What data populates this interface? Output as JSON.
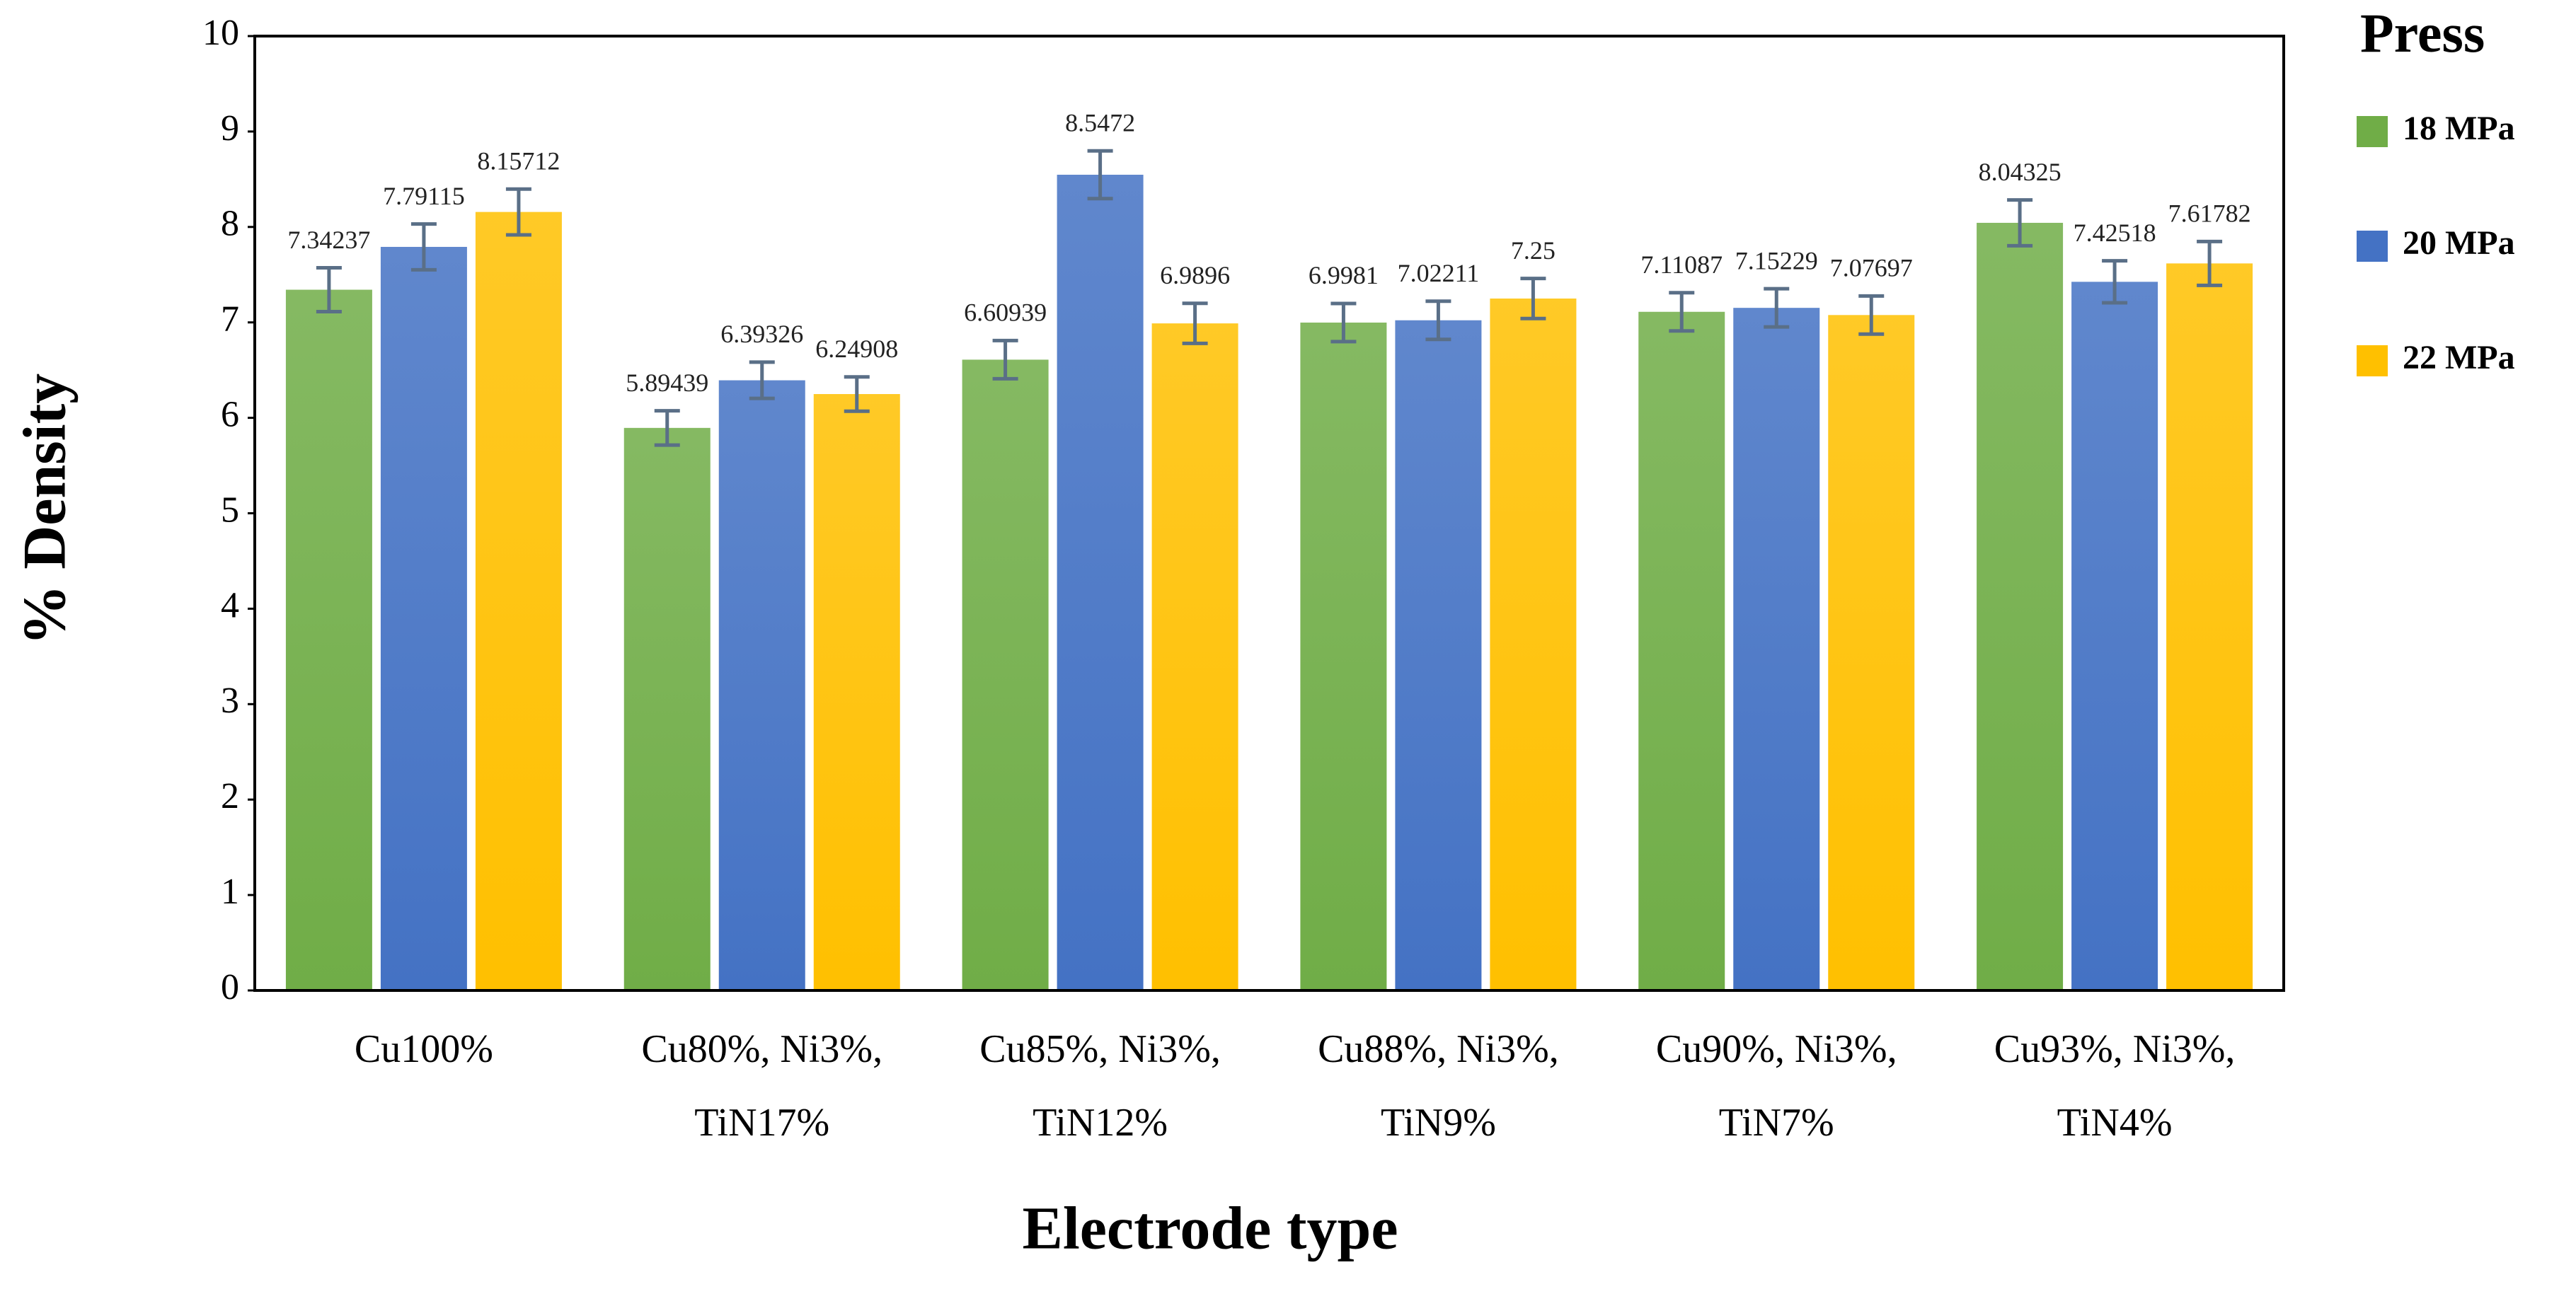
{
  "chart_data": {
    "type": "bar",
    "xlabel": "Electrode type",
    "ylabel": "% Density",
    "legend_title": "Press",
    "legend_position": "right",
    "categories": [
      [
        "Cu100%"
      ],
      [
        "Cu80%, Ni3%,",
        "TiN17%"
      ],
      [
        "Cu85%, Ni3%,",
        "TiN12%"
      ],
      [
        "Cu88%, Ni3%,",
        "TiN9%"
      ],
      [
        "Cu90%, Ni3%,",
        "TiN7%"
      ],
      [
        "Cu93%, Ni3%,",
        "TiN4%"
      ]
    ],
    "series": [
      {
        "name": "18 MPa",
        "color": "#70ad47",
        "values": [
          7.34237,
          5.89439,
          6.60939,
          6.9981,
          7.11087,
          8.04325
        ],
        "errors": [
          0.23,
          0.18,
          0.2,
          0.2,
          0.2,
          0.24
        ]
      },
      {
        "name": "20 MPa",
        "color": "#4472c4",
        "values": [
          7.79115,
          6.39326,
          8.5472,
          7.02211,
          7.15229,
          7.42518
        ],
        "errors": [
          0.24,
          0.19,
          0.25,
          0.2,
          0.2,
          0.22
        ]
      },
      {
        "name": "22 MPa",
        "color": "#ffc000",
        "values": [
          8.15712,
          6.24908,
          6.9896,
          7.25,
          7.07697,
          7.61782
        ],
        "errors": [
          0.24,
          0.18,
          0.21,
          0.21,
          0.2,
          0.23
        ]
      }
    ],
    "ylim": [
      0,
      10
    ],
    "yticks": [
      0,
      1,
      2,
      3,
      4,
      5,
      6,
      7,
      8,
      9,
      10
    ],
    "error_color": "#5a6f87"
  }
}
